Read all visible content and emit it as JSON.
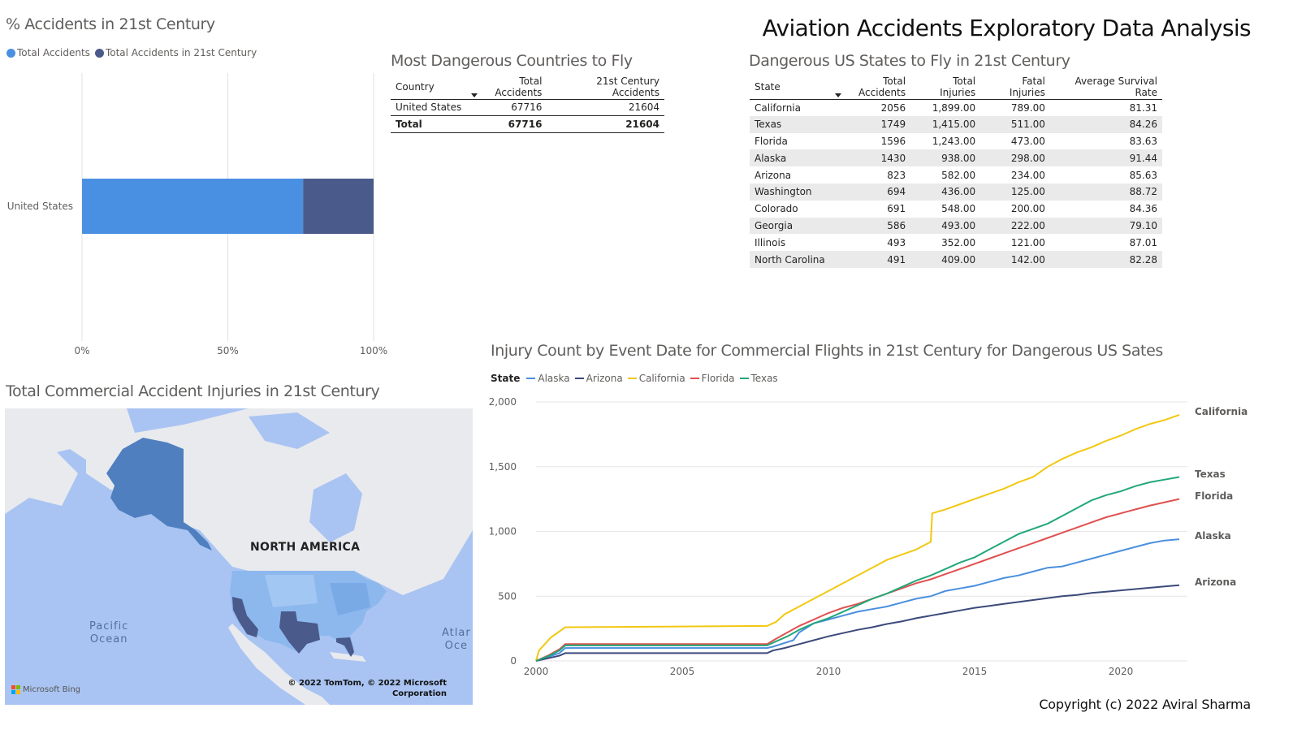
{
  "header": {
    "title": "Aviation Accidents Exploratory Data Analysis"
  },
  "footer": {
    "copyright": "Copyright (c) 2022 Aviral Sharma"
  },
  "colors": {
    "blue": "#4a90e2",
    "dark_blue": "#4a5a8a",
    "alaska": "#4a8fdf",
    "arizona": "#3b4a7a",
    "california": "#f2c811",
    "florida": "#e05050",
    "texas": "#22a77a"
  },
  "bar_visual": {
    "title": "% Accidents in 21st Century",
    "legend": [
      {
        "label": "Total Accidents",
        "color": "#4a90e2"
      },
      {
        "label": "Total Accidents in 21st Century",
        "color": "#4a5a8a"
      }
    ]
  },
  "countries_visual": {
    "title": "Most Dangerous Countries to Fly",
    "columns": [
      "Country",
      "Total Accidents",
      "21st Century Accidents"
    ],
    "rows": [
      [
        "United States",
        "67716",
        "21604"
      ]
    ],
    "total": [
      "Total",
      "67716",
      "21604"
    ]
  },
  "states_visual": {
    "title": "Dangerous US States to Fly in 21st Century",
    "columns": [
      "State",
      "Total Accidents",
      "Total Injuries",
      "Fatal Injuries",
      "Average Survival Rate"
    ],
    "rows": [
      [
        "California",
        "2056",
        "1,899.00",
        "789.00",
        "81.31"
      ],
      [
        "Texas",
        "1749",
        "1,415.00",
        "511.00",
        "84.26"
      ],
      [
        "Florida",
        "1596",
        "1,243.00",
        "473.00",
        "83.63"
      ],
      [
        "Alaska",
        "1430",
        "938.00",
        "298.00",
        "91.44"
      ],
      [
        "Arizona",
        "823",
        "582.00",
        "234.00",
        "85.63"
      ],
      [
        "Washington",
        "694",
        "436.00",
        "125.00",
        "88.72"
      ],
      [
        "Colorado",
        "691",
        "548.00",
        "200.00",
        "84.36"
      ],
      [
        "Georgia",
        "586",
        "493.00",
        "222.00",
        "79.10"
      ],
      [
        "Illinois",
        "493",
        "352.00",
        "121.00",
        "87.01"
      ],
      [
        "North Carolina",
        "491",
        "409.00",
        "142.00",
        "82.28"
      ]
    ]
  },
  "map_visual": {
    "title": "Total Commercial Accident Injuries in 21st Century",
    "continent_label": "NORTH AMERICA",
    "ocean_pacific": [
      "Pacific",
      "Ocean"
    ],
    "ocean_atlantic": [
      "Atlar",
      "Oce"
    ],
    "bing_label": "Microsoft Bing",
    "copyright_lines": [
      "© 2022 TomTom, © 2022 Microsoft",
      "Corporation"
    ]
  },
  "line_visual": {
    "title": "Injury Count by Event Date for Commercial Flights in 21st Century for Dangerous US Sates",
    "legend_title": "State"
  },
  "chart_data": [
    {
      "type": "bar",
      "orientation": "horizontal",
      "stacking": "percent",
      "categories": [
        "United States"
      ],
      "series": [
        {
          "name": "Total Accidents",
          "values": [
            67716
          ]
        },
        {
          "name": "Total Accidents in 21st Century",
          "values": [
            21604
          ]
        }
      ],
      "xlim": [
        0,
        100
      ],
      "xticks": [
        "0%",
        "50%",
        "100%"
      ],
      "grid": true,
      "legend": "top-left"
    },
    {
      "type": "line",
      "xlim": [
        2000,
        2022
      ],
      "xticks": [
        2000,
        2005,
        2010,
        2015,
        2020
      ],
      "ylim": [
        0,
        2000
      ],
      "yticks": [
        "0",
        "500",
        "1,000",
        "1,500",
        "2,000"
      ],
      "legend": "top-left",
      "end_labels": true,
      "series": [
        {
          "name": "Alaska",
          "color": "#4a8fdf",
          "points": [
            [
              2000,
              0
            ],
            [
              2000.4,
              30
            ],
            [
              2000.8,
              60
            ],
            [
              2001,
              100
            ],
            [
              2007.9,
              100
            ],
            [
              2008.1,
              110
            ],
            [
              2008.8,
              160
            ],
            [
              2009,
              220
            ],
            [
              2009.5,
              290
            ],
            [
              2010,
              320
            ],
            [
              2010.5,
              350
            ],
            [
              2011,
              380
            ],
            [
              2011.5,
              400
            ],
            [
              2012,
              420
            ],
            [
              2012.5,
              450
            ],
            [
              2013,
              480
            ],
            [
              2013.5,
              500
            ],
            [
              2014,
              540
            ],
            [
              2014.5,
              560
            ],
            [
              2015,
              580
            ],
            [
              2015.5,
              610
            ],
            [
              2016,
              640
            ],
            [
              2016.5,
              660
            ],
            [
              2017,
              690
            ],
            [
              2017.5,
              720
            ],
            [
              2018,
              730
            ],
            [
              2018.5,
              760
            ],
            [
              2019,
              790
            ],
            [
              2019.5,
              820
            ],
            [
              2020,
              850
            ],
            [
              2020.5,
              880
            ],
            [
              2021,
              910
            ],
            [
              2021.5,
              930
            ],
            [
              2022,
              940
            ]
          ]
        },
        {
          "name": "Arizona",
          "color": "#3b4a7a",
          "points": [
            [
              2000,
              0
            ],
            [
              2000.4,
              20
            ],
            [
              2000.8,
              40
            ],
            [
              2001,
              60
            ],
            [
              2007.9,
              60
            ],
            [
              2008.1,
              80
            ],
            [
              2008.5,
              100
            ],
            [
              2009,
              130
            ],
            [
              2009.5,
              160
            ],
            [
              2010,
              190
            ],
            [
              2010.5,
              215
            ],
            [
              2011,
              240
            ],
            [
              2011.5,
              260
            ],
            [
              2012,
              285
            ],
            [
              2012.5,
              305
            ],
            [
              2013,
              330
            ],
            [
              2013.5,
              350
            ],
            [
              2014,
              370
            ],
            [
              2014.5,
              390
            ],
            [
              2015,
              410
            ],
            [
              2015.5,
              425
            ],
            [
              2016,
              440
            ],
            [
              2016.5,
              455
            ],
            [
              2017,
              470
            ],
            [
              2017.5,
              485
            ],
            [
              2018,
              500
            ],
            [
              2018.5,
              510
            ],
            [
              2019,
              525
            ],
            [
              2019.5,
              535
            ],
            [
              2020,
              545
            ],
            [
              2020.5,
              555
            ],
            [
              2021,
              565
            ],
            [
              2021.5,
              575
            ],
            [
              2022,
              585
            ]
          ]
        },
        {
          "name": "California",
          "color": "#f2c811",
          "points": [
            [
              2000,
              0
            ],
            [
              2000.1,
              80
            ],
            [
              2000.5,
              180
            ],
            [
              2001,
              260
            ],
            [
              2007.9,
              270
            ],
            [
              2008.2,
              300
            ],
            [
              2008.5,
              360
            ],
            [
              2009,
              420
            ],
            [
              2009.5,
              480
            ],
            [
              2010,
              540
            ],
            [
              2010.5,
              600
            ],
            [
              2011,
              660
            ],
            [
              2011.5,
              720
            ],
            [
              2012,
              780
            ],
            [
              2012.5,
              820
            ],
            [
              2013,
              860
            ],
            [
              2013.5,
              920
            ],
            [
              2013.55,
              1140
            ],
            [
              2014,
              1170
            ],
            [
              2014.5,
              1210
            ],
            [
              2015,
              1250
            ],
            [
              2015.5,
              1290
            ],
            [
              2016,
              1330
            ],
            [
              2016.5,
              1380
            ],
            [
              2017,
              1420
            ],
            [
              2017.5,
              1500
            ],
            [
              2018,
              1560
            ],
            [
              2018.5,
              1610
            ],
            [
              2019,
              1650
            ],
            [
              2019.5,
              1700
            ],
            [
              2020,
              1740
            ],
            [
              2020.5,
              1790
            ],
            [
              2021,
              1830
            ],
            [
              2021.5,
              1860
            ],
            [
              2022,
              1900
            ]
          ]
        },
        {
          "name": "Florida",
          "color": "#e05050",
          "points": [
            [
              2000,
              0
            ],
            [
              2000.4,
              40
            ],
            [
              2000.8,
              90
            ],
            [
              2001,
              130
            ],
            [
              2007.9,
              130
            ],
            [
              2008.2,
              170
            ],
            [
              2008.6,
              220
            ],
            [
              2009,
              270
            ],
            [
              2009.5,
              320
            ],
            [
              2010,
              370
            ],
            [
              2010.5,
              410
            ],
            [
              2011,
              440
            ],
            [
              2011.5,
              480
            ],
            [
              2012,
              520
            ],
            [
              2012.5,
              560
            ],
            [
              2013,
              600
            ],
            [
              2013.5,
              630
            ],
            [
              2014,
              670
            ],
            [
              2014.5,
              710
            ],
            [
              2015,
              750
            ],
            [
              2015.5,
              790
            ],
            [
              2016,
              830
            ],
            [
              2016.5,
              870
            ],
            [
              2017,
              910
            ],
            [
              2017.5,
              950
            ],
            [
              2018,
              990
            ],
            [
              2018.5,
              1030
            ],
            [
              2019,
              1070
            ],
            [
              2019.5,
              1110
            ],
            [
              2020,
              1140
            ],
            [
              2020.5,
              1170
            ],
            [
              2021,
              1200
            ],
            [
              2021.5,
              1225
            ],
            [
              2022,
              1250
            ]
          ]
        },
        {
          "name": "Texas",
          "color": "#22a77a",
          "points": [
            [
              2000,
              0
            ],
            [
              2000.4,
              35
            ],
            [
              2000.8,
              80
            ],
            [
              2001,
              120
            ],
            [
              2007.9,
              120
            ],
            [
              2008.2,
              150
            ],
            [
              2008.6,
              190
            ],
            [
              2009,
              240
            ],
            [
              2009.5,
              290
            ],
            [
              2010,
              330
            ],
            [
              2010.5,
              380
            ],
            [
              2011,
              430
            ],
            [
              2011.5,
              480
            ],
            [
              2012,
              520
            ],
            [
              2012.5,
              570
            ],
            [
              2013,
              620
            ],
            [
              2013.5,
              660
            ],
            [
              2014,
              710
            ],
            [
              2014.5,
              760
            ],
            [
              2015,
              800
            ],
            [
              2015.5,
              860
            ],
            [
              2016,
              920
            ],
            [
              2016.5,
              980
            ],
            [
              2017,
              1020
            ],
            [
              2017.5,
              1060
            ],
            [
              2018,
              1120
            ],
            [
              2018.5,
              1180
            ],
            [
              2019,
              1240
            ],
            [
              2019.5,
              1280
            ],
            [
              2020,
              1310
            ],
            [
              2020.5,
              1350
            ],
            [
              2021,
              1380
            ],
            [
              2021.5,
              1400
            ],
            [
              2022,
              1420
            ]
          ]
        }
      ]
    }
  ]
}
